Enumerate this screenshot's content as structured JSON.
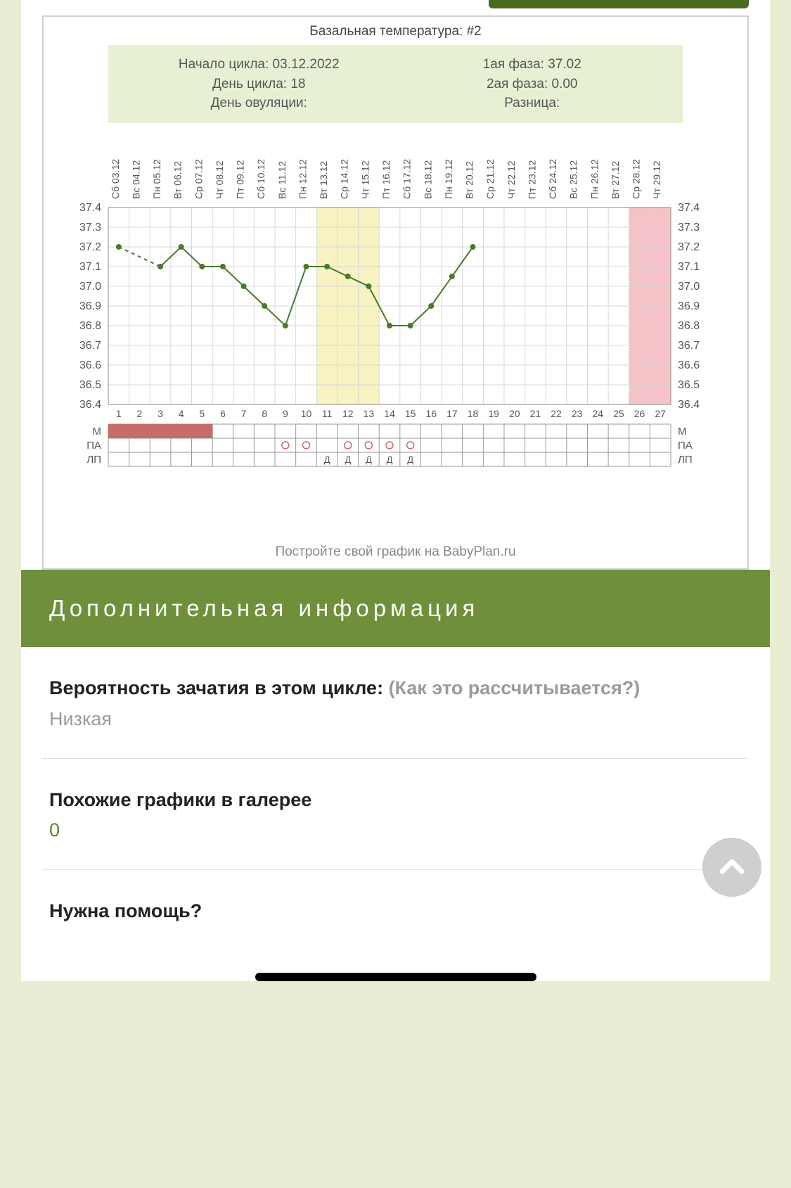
{
  "chart": {
    "title": "Базальная температура: #2",
    "info_left": {
      "cycle_start_label": "Начало цикла: 03.12.2022",
      "cycle_day_label": "День цикла: 18",
      "ovulation_day_label": "День овуляции:"
    },
    "info_right": {
      "phase1_label": "1ая фаза: 37.02",
      "phase2_label": "2ая фаза: 0.00",
      "diff_label": "Разница:"
    },
    "type": "line",
    "x_labels_top": [
      "Сб 03.12",
      "Вс 04.12",
      "Пн 05.12",
      "Вт 06.12",
      "Ср 07.12",
      "Чт 08.12",
      "Пт 09.12",
      "Сб 10.12",
      "Вс 11.12",
      "Пн 12.12",
      "Вт 13.12",
      "Ср 14.12",
      "Чт 15.12",
      "Пт 16.12",
      "Сб 17.12",
      "Вс 18.12",
      "Пн 19.12",
      "Вт 20.12",
      "Ср 21.12",
      "Чт 22.12",
      "Пт 23.12",
      "Сб 24.12",
      "Вс 25.12",
      "Пн 26.12",
      "Вт 27.12",
      "Ср 28.12",
      "Чт 29.12"
    ],
    "x_day_numbers": [
      1,
      2,
      3,
      4,
      5,
      6,
      7,
      8,
      9,
      10,
      11,
      12,
      13,
      14,
      15,
      16,
      17,
      18,
      19,
      20,
      21,
      22,
      23,
      24,
      25,
      26,
      27
    ],
    "y_ticks": [
      37.4,
      37.3,
      37.2,
      37.1,
      37.0,
      36.9,
      36.8,
      36.7,
      36.6,
      36.5,
      36.4
    ],
    "y_min": 36.4,
    "y_max": 37.4,
    "values": [
      37.2,
      null,
      37.1,
      37.2,
      37.1,
      37.1,
      37.0,
      36.9,
      36.8,
      37.1,
      37.1,
      37.05,
      37.0,
      36.8,
      36.8,
      36.9,
      37.05,
      37.2,
      null,
      null,
      null,
      null,
      null,
      null,
      null,
      null,
      null
    ],
    "dashed_segments": [
      [
        0,
        2
      ]
    ],
    "highlight_range": {
      "start_day": 11,
      "end_day": 13,
      "color": "#f7f3c2"
    },
    "end_pink_range": {
      "start_day": 26,
      "end_day": 27,
      "color": "#f4c2c7"
    },
    "marker_color": "#4a7a2a",
    "line_color": "#4a7a2a",
    "line_width": 2,
    "marker_radius": 4,
    "grid_color": "#d8d8d8",
    "background_color": "#ffffff",
    "menstruation_days": [
      1,
      2,
      3,
      4,
      5
    ],
    "menstruation_color": "#c96b6b",
    "pa_open_circle_days": [
      9,
      10,
      12,
      13,
      14,
      15
    ],
    "lp_d_days": [
      11,
      12,
      13,
      14,
      15
    ],
    "row_labels": [
      "М",
      "ПА",
      "ЛП"
    ],
    "footer": "Постройте свой график на BabyPlan.ru"
  },
  "section_header": "Дополнительная информация",
  "blocks": {
    "probability": {
      "heading": "Вероятность зачатия в этом цикле: ",
      "hint": "(Как это рассчитывается?)",
      "value": "Низкая"
    },
    "similar": {
      "heading": "Похожие графики в галерее",
      "value": "0"
    },
    "help": {
      "heading": "Нужна помощь?"
    }
  }
}
